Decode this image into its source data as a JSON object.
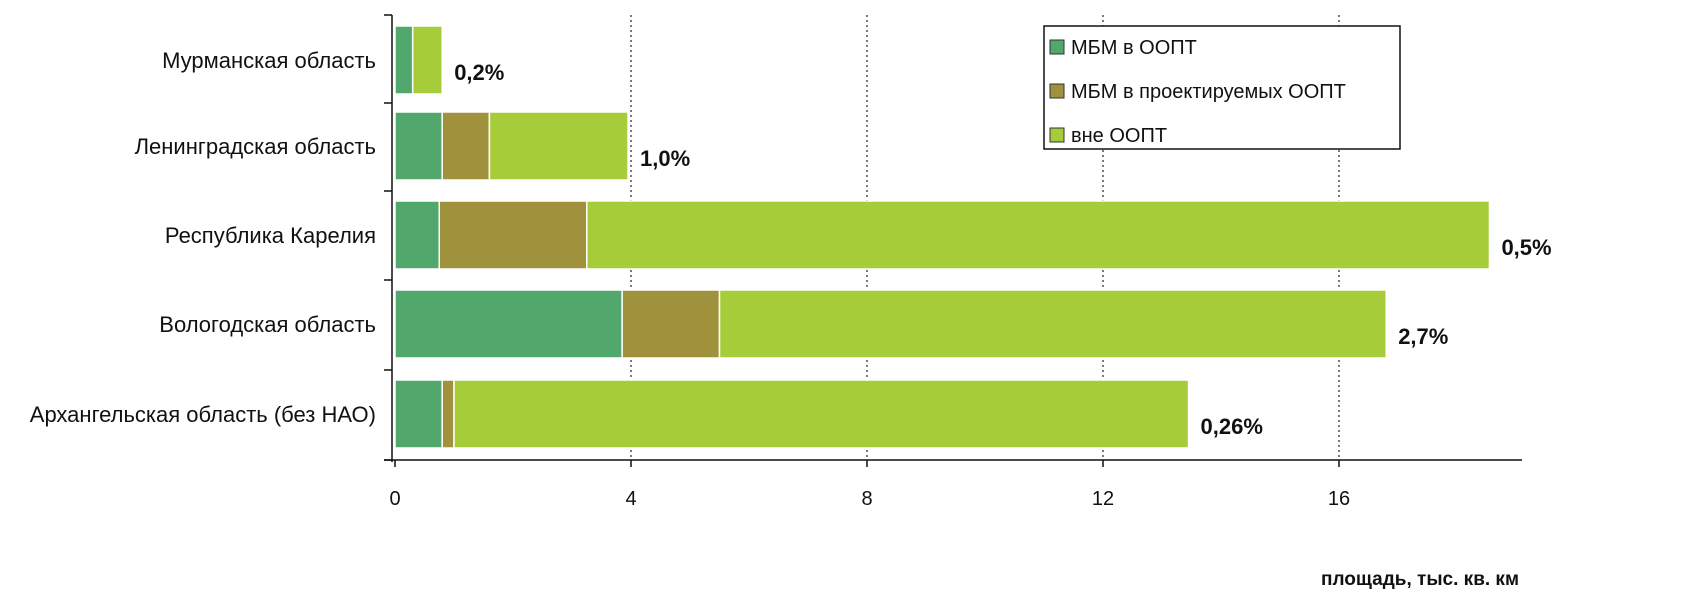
{
  "chart_data": {
    "type": "bar",
    "orientation": "horizontal",
    "stacked": true,
    "categories": [
      "Мурманская область",
      "Ленинградская область",
      "Республика Карелия",
      "Вологодская область",
      "Архангельская область (без НАО)"
    ],
    "series": [
      {
        "name": "МБМ в ООПТ",
        "color": "#52a86c",
        "values": [
          0.3,
          0.8,
          0.75,
          3.85,
          0.8
        ]
      },
      {
        "name": "МБМ в проектируемых ООПТ",
        "color": "#a0923c",
        "values": [
          0.0,
          0.8,
          2.5,
          1.65,
          0.2
        ]
      },
      {
        "name": "вне ООПТ",
        "color": "#a6cc3a",
        "values": [
          0.5,
          2.35,
          15.3,
          11.3,
          12.45
        ]
      }
    ],
    "percent_labels": [
      "0,2%",
      "1,0%",
      "0,5%",
      "2,7%",
      "0,26%"
    ],
    "xticks": [
      "0",
      "4",
      "8",
      "12",
      "16"
    ],
    "xlim": [
      0,
      19.2
    ],
    "xlabel": "площадь, тыс. кв. км",
    "grid": "vertical dotted",
    "legend_position": "top-right"
  }
}
